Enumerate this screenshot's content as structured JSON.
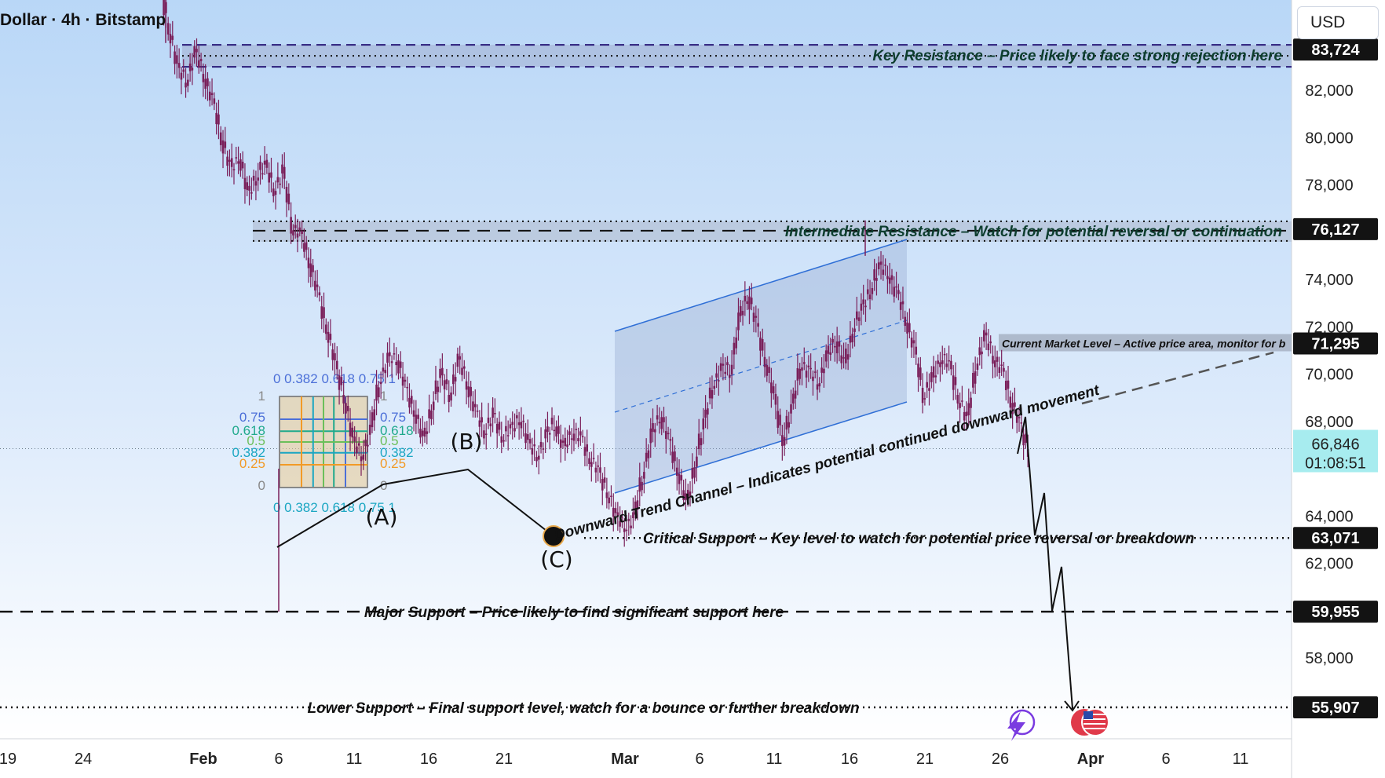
{
  "header": {
    "title": "Dollar · 4h · Bitstamp",
    "currency": "USD"
  },
  "chart_data": {
    "type": "candlestick",
    "price_range": [
      54000,
      86500
    ],
    "y_ticks": [
      {
        "label": "82,000",
        "value": 82000
      },
      {
        "label": "80,000",
        "value": 80000
      },
      {
        "label": "78,000",
        "value": 78000
      },
      {
        "label": "74,000",
        "value": 74000
      },
      {
        "label": "72,000",
        "value": 72000
      },
      {
        "label": "70,000",
        "value": 70000
      },
      {
        "label": "68,000",
        "value": 68000
      },
      {
        "label": "64,000",
        "value": 64000
      },
      {
        "label": "62,000",
        "value": 62000
      },
      {
        "label": "58,000",
        "value": 58000
      }
    ],
    "x_ticks": [
      {
        "label": "19",
        "bold": false
      },
      {
        "label": "24",
        "bold": false
      },
      {
        "label": "Feb",
        "bold": true
      },
      {
        "label": "6",
        "bold": false
      },
      {
        "label": "11",
        "bold": false
      },
      {
        "label": "16",
        "bold": false
      },
      {
        "label": "21",
        "bold": false
      },
      {
        "label": "Mar",
        "bold": true
      },
      {
        "label": "6",
        "bold": false
      },
      {
        "label": "11",
        "bold": false
      },
      {
        "label": "16",
        "bold": false
      },
      {
        "label": "21",
        "bold": false
      },
      {
        "label": "26",
        "bold": false
      },
      {
        "label": "Apr",
        "bold": true
      },
      {
        "label": "6",
        "bold": false
      },
      {
        "label": "11",
        "bold": false
      }
    ],
    "price_levels": [
      {
        "label": "83,724",
        "value": 83724,
        "text": "Key Resistance – Price likely to face strong rejection here"
      },
      {
        "label": "76,127",
        "value": 76127,
        "text": "Intermediate Resistance – Watch for potential reversal or continuation"
      },
      {
        "label": "71,295",
        "value": 71295,
        "text": "Current Market Level – Active price area, monitor for b"
      },
      {
        "label": "63,071",
        "value": 63071,
        "text": "Critical Support – Key level to watch for potential price reversal or breakdown"
      },
      {
        "label": "59,955",
        "value": 59955,
        "text": "Major Support – Price likely to find significant support here"
      },
      {
        "label": "55,907",
        "value": 55907,
        "text": "Lower Support – Final support level, watch for a bounce or further breakdown"
      }
    ],
    "current_price": {
      "label": "66,846",
      "countdown": "01:08:51",
      "value": 66846
    },
    "channel_label": "Downward Trend Channel – Indicates potential continued downward movement",
    "wave_labels": [
      "(A)",
      "(B)",
      "(C)"
    ],
    "fib_levels": [
      "1",
      "0.75",
      "0.618",
      "0.5",
      "0.382",
      "0.25",
      "0"
    ],
    "fib_top_labels": "0 0.382 0.618 0.75 1",
    "close_path": [
      84500,
      83000,
      82300,
      83600,
      82600,
      81500,
      80000,
      78600,
      79200,
      77600,
      78300,
      78900,
      77700,
      78600,
      76200,
      75900,
      74800,
      73300,
      71900,
      70400,
      68900,
      67200,
      66500,
      67600,
      69700,
      70600,
      70700,
      69300,
      68400,
      67200,
      68600,
      70100,
      69000,
      70600,
      69600,
      68300,
      67600,
      68200,
      67300,
      67700,
      68100,
      67100,
      66500,
      67400,
      67900,
      66800,
      67600,
      67200,
      66400,
      65900,
      64900,
      64000,
      63500,
      63900,
      65700,
      67400,
      68300,
      67100,
      65900,
      64500,
      66200,
      68000,
      69500,
      70200,
      70100,
      72300,
      73400,
      72000,
      70500,
      69000,
      67100,
      68600,
      70400,
      70100,
      69600,
      70700,
      71500,
      70300,
      71900,
      72800,
      73500,
      74600,
      74200,
      73400,
      72300,
      71000,
      69100,
      69700,
      70700,
      70400,
      68900,
      68100,
      70300,
      71600,
      70700,
      70100,
      68900,
      67800,
      66700
    ]
  }
}
